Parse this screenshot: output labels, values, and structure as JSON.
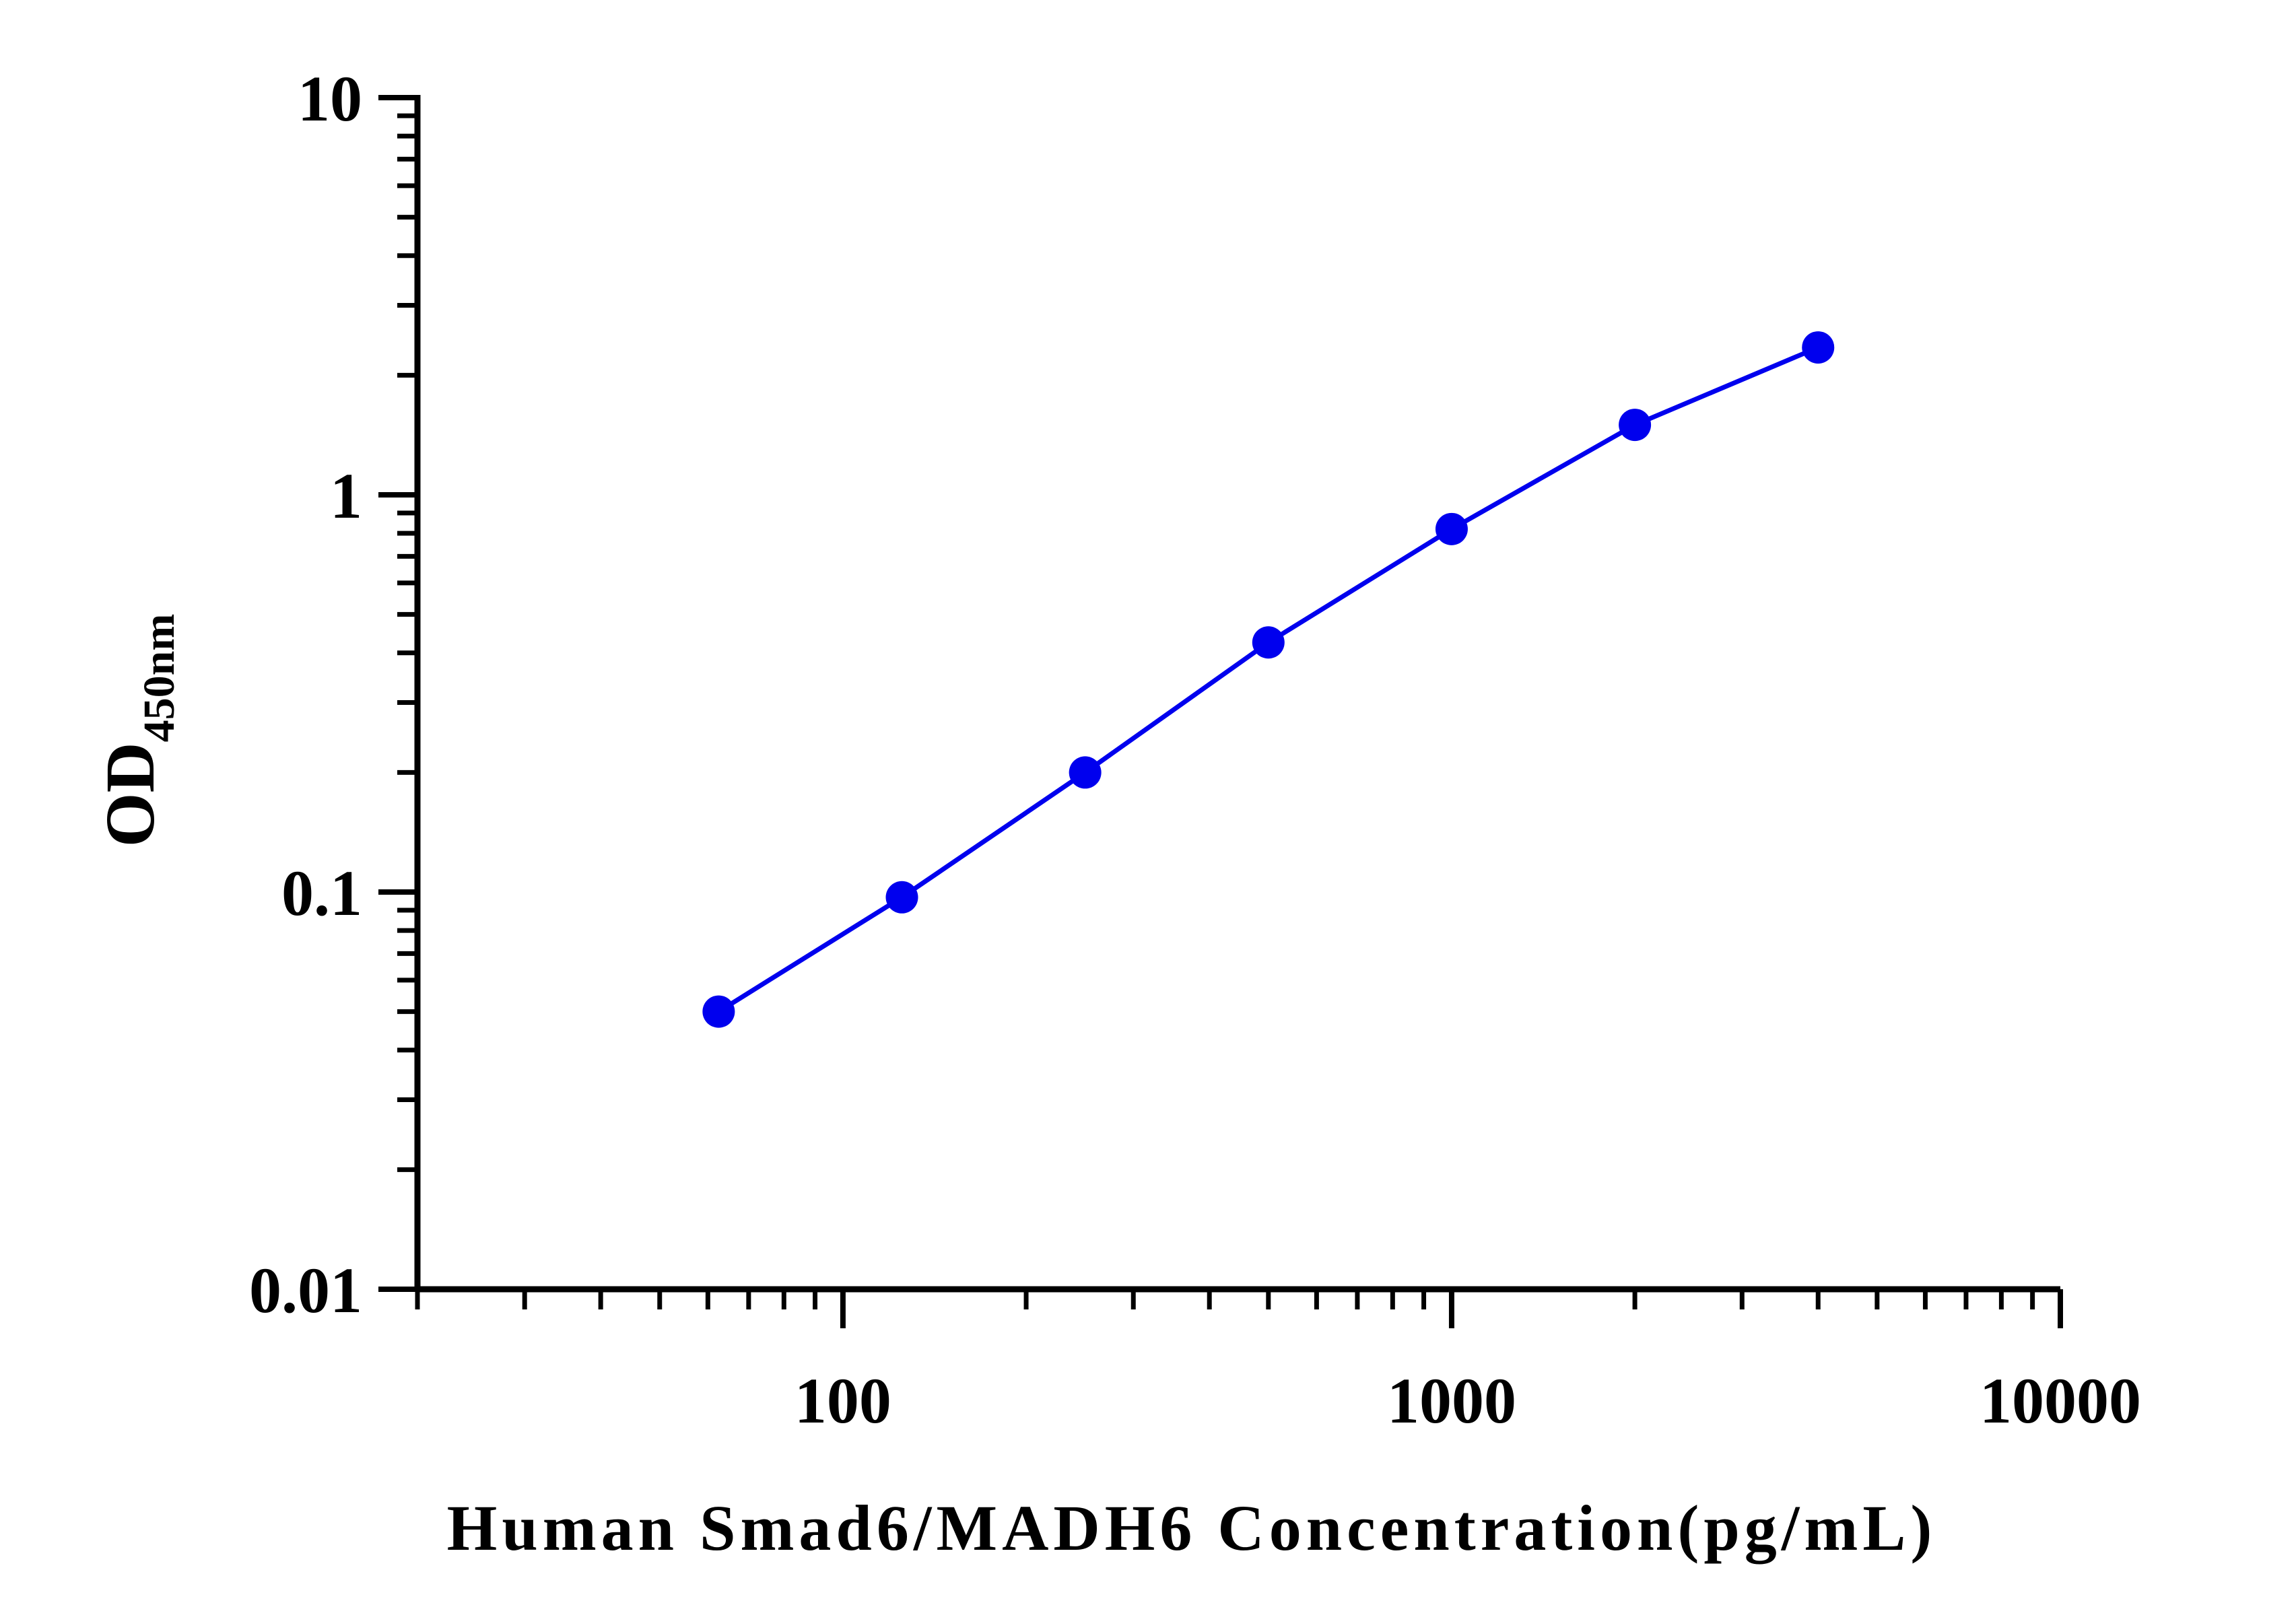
{
  "chart_data": {
    "type": "line",
    "title": "",
    "xlabel": "Human Smad6/MADH6 Concentration(pg/mL)",
    "ylabel": "OD",
    "ylabel_subscript": "450nm",
    "x_scale": "log",
    "y_scale": "log",
    "xlim": [
      20,
      10000
    ],
    "ylim": [
      0.01,
      10
    ],
    "x_ticks": [
      {
        "value": 100,
        "label": "100"
      },
      {
        "value": 1000,
        "label": "1000"
      },
      {
        "value": 10000,
        "label": "10000"
      }
    ],
    "y_ticks": [
      {
        "value": 0.01,
        "label": "0.01"
      },
      {
        "value": 0.1,
        "label": "0.1"
      },
      {
        "value": 1,
        "label": "1"
      },
      {
        "value": 10,
        "label": "10"
      }
    ],
    "grid": false,
    "legend": "none",
    "series": [
      {
        "color": "#0000ee",
        "marker": "circle",
        "x": [
          62.5,
          125,
          250,
          500,
          1000,
          2000,
          4000
        ],
        "y": [
          0.05,
          0.097,
          0.2,
          0.425,
          0.82,
          1.5,
          2.35
        ]
      }
    ]
  }
}
